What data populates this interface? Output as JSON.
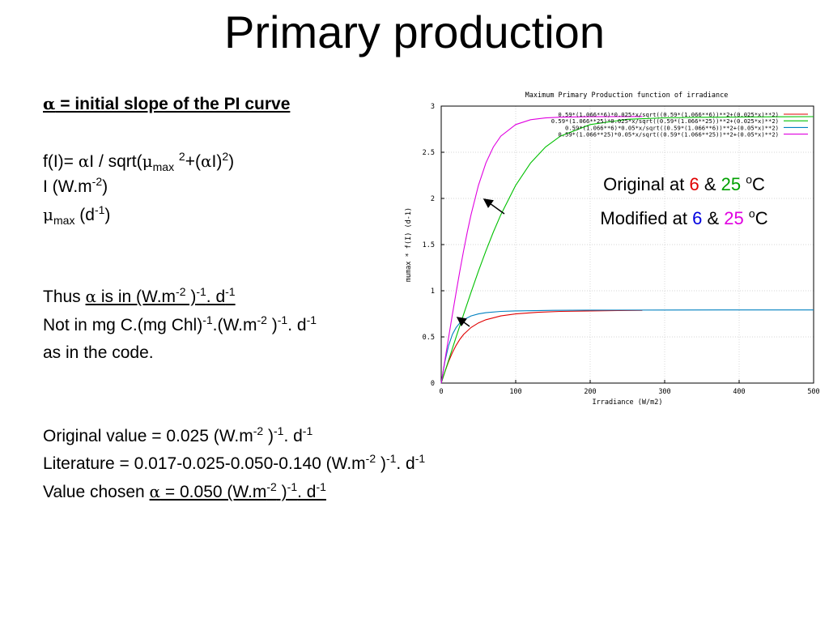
{
  "slide": {
    "title": "Primary production"
  },
  "left_text": {
    "alpha": "α",
    "mu": "μ",
    "line1_rest": " = initial slope of the PI curve",
    "f_prefix": "f(I)= ",
    "f_mid": "I / sqrt(",
    "f_max": "max",
    "f_two": "2",
    "f_plus": "+(",
    "f_I": "I)",
    "f_end": ")",
    "irr_unit_a": "I (W.m",
    "irr_unit_exp": "-2",
    "irr_unit_b": ")",
    "mu_sub": "max",
    "mu_unit_a": " (d",
    "mu_unit_exp": "-1",
    "mu_unit_b": ")",
    "thus_a": "Thus ",
    "thus_b": " is in (W.m",
    "exp_m2": "-2",
    "close_paren": " )",
    "exp_m1": "-1",
    "dot_d": ". d",
    "not_a": "Not in mg C.(mg Chl)",
    "not_b": ".(W.m",
    "code_line": "as in the code.",
    "orig_a": "Original value = 0.025 (W.m",
    "lit_a": "Literature = 0.017-0.025-0.050-0.140 (W.m",
    "chosen_a": "Value chosen ",
    "chosen_b": " = 0.050 (W.m"
  },
  "annotation": {
    "original_prefix": "Original at ",
    "original_t1": "6",
    "amp": " & ",
    "original_t2": "25",
    "deg_o": "o",
    "deg_c": "C",
    "modified_prefix": "Modified at ",
    "modified_t1": "6",
    "modified_t2": "25",
    "colors": {
      "original_t1": "#e00000",
      "original_t2": "#00a000",
      "modified_t1": "#0000e0",
      "modified_t2": "#e000e0"
    }
  },
  "chart_data": {
    "type": "line",
    "title": "Maximum Primary Production function of irradiance",
    "xlabel": "Irradiance (W/m2)",
    "ylabel": "mumax * f(I) (d-1)",
    "xlim": [
      0,
      500
    ],
    "ylim": [
      0,
      3
    ],
    "xticks": [
      0,
      100,
      200,
      300,
      400,
      500
    ],
    "yticks": [
      0,
      0.5,
      1,
      1.5,
      2,
      2.5,
      3
    ],
    "grid": true,
    "legend_position": "top-right",
    "series": [
      {
        "name": "0.59*(1.066**6)*0.025*x/sqrt((0.59*(1.066**6))**2+(0.025*x)**2)",
        "color": "#e00000",
        "x": [
          0,
          5,
          10,
          15,
          20,
          25,
          30,
          40,
          50,
          60,
          80,
          100,
          130,
          160,
          200,
          240,
          270
        ],
        "y": [
          0,
          0.124,
          0.236,
          0.33,
          0.409,
          0.474,
          0.526,
          0.602,
          0.652,
          0.686,
          0.727,
          0.749,
          0.767,
          0.776,
          0.782,
          0.786,
          0.788
        ]
      },
      {
        "name": "0.59*(1.066**25)*0.025*x/sqrt((0.59*(1.066**25))**2+(0.025*x)**2)",
        "color": "#00c000",
        "x": [
          0,
          10,
          20,
          30,
          40,
          50,
          60,
          70,
          80,
          100,
          120,
          140,
          160,
          200,
          250,
          300,
          350,
          400,
          450,
          500
        ],
        "y": [
          0,
          0.25,
          0.498,
          0.743,
          0.982,
          1.213,
          1.432,
          1.636,
          1.823,
          2.142,
          2.384,
          2.557,
          2.675,
          2.8,
          2.857,
          2.873,
          2.879,
          2.882,
          2.884,
          2.886
        ]
      },
      {
        "name": "0.59*(1.066**6)*0.05*x/sqrt((0.59*(1.066**6))**2+(0.05*x)**2)",
        "color": "#0080c0",
        "x": [
          0,
          5,
          10,
          15,
          20,
          25,
          30,
          40,
          50,
          60,
          80,
          100,
          150,
          200,
          300,
          400,
          500
        ],
        "y": [
          0,
          0.236,
          0.409,
          0.526,
          0.602,
          0.652,
          0.686,
          0.727,
          0.749,
          0.762,
          0.776,
          0.782,
          0.788,
          0.79,
          0.791,
          0.792,
          0.792
        ]
      },
      {
        "name": "0.59*(1.066**25)*0.05*x/sqrt((0.59*(1.066**25))**2+(0.05*x)**2)",
        "color": "#e000e0",
        "x": [
          0,
          5,
          10,
          15,
          20,
          25,
          30,
          35,
          40,
          50,
          60,
          70,
          80,
          100,
          120,
          140,
          160,
          200,
          240,
          270
        ],
        "y": [
          0,
          0.25,
          0.498,
          0.743,
          0.982,
          1.213,
          1.432,
          1.636,
          1.823,
          2.142,
          2.384,
          2.557,
          2.675,
          2.8,
          2.853,
          2.872,
          2.88,
          2.885,
          2.887,
          2.888
        ]
      }
    ]
  }
}
